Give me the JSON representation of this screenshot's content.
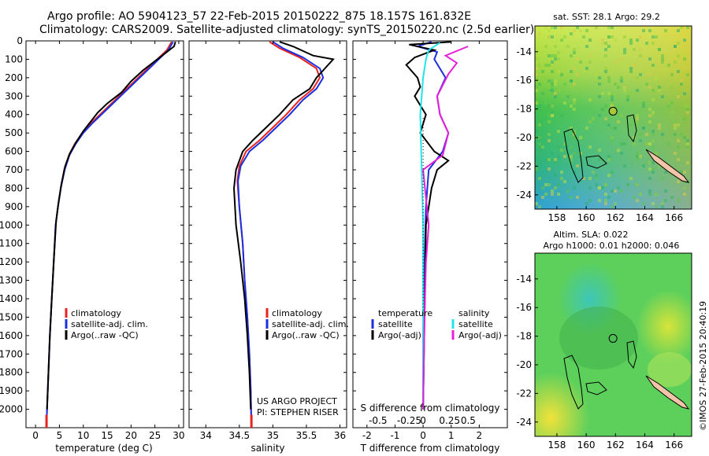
{
  "header": {
    "line1": "Argo profile: AO 5904123_57 22-Feb-2015 20150222_875 18.157S 161.832E",
    "line2": "Climatology: CARS2009. Satellite-adjusted climatology: synTS_20150220.nc (2.5d earlier)"
  },
  "colors": {
    "climatology": "#e8231f",
    "satellite": "#1a2fe0",
    "argo": "#000000",
    "sat_salinity": "#22e3e8",
    "argo_salinity": "#e81fd8",
    "land": "#f2c4a8"
  },
  "chart_data": [
    {
      "type": "line",
      "panel": "temperature",
      "xlabel": "temperature (deg C)",
      "ylabel": "",
      "xlim": [
        -2,
        31
      ],
      "ylim": [
        2100,
        0
      ],
      "xticks": [
        0,
        5,
        10,
        15,
        20,
        25,
        30
      ],
      "yticks": [
        0,
        100,
        200,
        300,
        400,
        500,
        600,
        700,
        800,
        900,
        1000,
        1100,
        1200,
        1300,
        1400,
        1500,
        1600,
        1700,
        1800,
        1900,
        2000
      ],
      "legend": [
        "climatology",
        "satellite-adj. clim.",
        "Argo(..raw -QC)"
      ],
      "series": [
        {
          "name": "climatology",
          "color": "climatology",
          "points": [
            [
              28.5,
              5
            ],
            [
              27.5,
              50
            ],
            [
              25.5,
              100
            ],
            [
              23.5,
              150
            ],
            [
              21.5,
              200
            ],
            [
              19.5,
              250
            ],
            [
              17.5,
              300
            ],
            [
              15.5,
              350
            ],
            [
              13.5,
              400
            ],
            [
              11.5,
              450
            ],
            [
              9.8,
              500
            ],
            [
              8.2,
              560
            ],
            [
              7.0,
              620
            ],
            [
              6.0,
              700
            ],
            [
              5.3,
              800
            ],
            [
              4.7,
              900
            ],
            [
              4.2,
              1000
            ],
            [
              3.8,
              1200
            ],
            [
              3.4,
              1400
            ],
            [
              3.0,
              1600
            ],
            [
              2.7,
              1800
            ],
            [
              2.4,
              2000
            ],
            [
              2.3,
              2090
            ]
          ]
        },
        {
          "name": "satellite-adj. clim.",
          "color": "satellite",
          "points": [
            [
              28.8,
              5
            ],
            [
              27.8,
              50
            ],
            [
              25.8,
              100
            ],
            [
              23.8,
              150
            ],
            [
              21.8,
              200
            ],
            [
              19.8,
              250
            ],
            [
              17.8,
              300
            ],
            [
              15.8,
              350
            ],
            [
              13.8,
              400
            ],
            [
              11.8,
              450
            ],
            [
              10.0,
              500
            ],
            [
              8.4,
              560
            ],
            [
              7.1,
              620
            ],
            [
              6.1,
              700
            ],
            [
              5.3,
              800
            ],
            [
              4.7,
              900
            ],
            [
              4.2,
              1000
            ],
            [
              3.8,
              1200
            ],
            [
              3.4,
              1400
            ],
            [
              3.0,
              1600
            ],
            [
              2.7,
              1800
            ],
            [
              2.4,
              2000
            ],
            [
              2.3,
              2090
            ]
          ]
        },
        {
          "name": "Argo(..raw -QC)",
          "color": "argo",
          "points": [
            [
              29.3,
              5
            ],
            [
              29.0,
              30
            ],
            [
              27.0,
              70
            ],
            [
              25.0,
              110
            ],
            [
              22.5,
              160
            ],
            [
              20.0,
              220
            ],
            [
              18.0,
              280
            ],
            [
              15.0,
              340
            ],
            [
              13.0,
              390
            ],
            [
              11.5,
              440
            ],
            [
              10.0,
              490
            ],
            [
              8.5,
              550
            ],
            [
              7.2,
              610
            ],
            [
              6.2,
              680
            ],
            [
              5.4,
              780
            ],
            [
              4.8,
              880
            ],
            [
              4.3,
              980
            ],
            [
              3.8,
              1200
            ],
            [
              3.4,
              1400
            ],
            [
              3.0,
              1600
            ],
            [
              2.7,
              1800
            ],
            [
              2.4,
              2000
            ]
          ]
        }
      ]
    },
    {
      "type": "line",
      "panel": "salinity",
      "xlabel": "salinity",
      "ylabel": "",
      "xlim": [
        33.75,
        36.1
      ],
      "ylim": [
        2100,
        0
      ],
      "xticks": [
        34,
        34.5,
        35,
        35.5,
        36
      ],
      "legend": [
        "climatology",
        "satellite-adj. clim.",
        "Argo(..raw -QC)"
      ],
      "annotations": [
        "US ARGO PROJECT",
        "PI: STEPHEN RISER"
      ],
      "series": [
        {
          "name": "climatology",
          "color": "climatology",
          "points": [
            [
              34.95,
              5
            ],
            [
              35.1,
              40
            ],
            [
              35.4,
              90
            ],
            [
              35.65,
              150
            ],
            [
              35.7,
              200
            ],
            [
              35.6,
              260
            ],
            [
              35.4,
              320
            ],
            [
              35.2,
              400
            ],
            [
              35.0,
              470
            ],
            [
              34.8,
              540
            ],
            [
              34.6,
              600
            ],
            [
              34.5,
              680
            ],
            [
              34.47,
              760
            ],
            [
              34.5,
              900
            ],
            [
              34.55,
              1100
            ],
            [
              34.58,
              1300
            ],
            [
              34.62,
              1500
            ],
            [
              34.65,
              1700
            ],
            [
              34.67,
              1900
            ],
            [
              34.68,
              2090
            ]
          ]
        },
        {
          "name": "satellite-adj. clim.",
          "color": "satellite",
          "points": [
            [
              35.0,
              5
            ],
            [
              35.15,
              40
            ],
            [
              35.45,
              90
            ],
            [
              35.7,
              150
            ],
            [
              35.75,
              200
            ],
            [
              35.65,
              260
            ],
            [
              35.45,
              320
            ],
            [
              35.25,
              400
            ],
            [
              35.05,
              470
            ],
            [
              34.85,
              540
            ],
            [
              34.65,
              600
            ],
            [
              34.52,
              680
            ],
            [
              34.48,
              760
            ],
            [
              34.5,
              900
            ],
            [
              34.55,
              1100
            ],
            [
              34.58,
              1300
            ],
            [
              34.62,
              1500
            ],
            [
              34.65,
              1700
            ],
            [
              34.67,
              1900
            ],
            [
              34.68,
              2090
            ]
          ]
        },
        {
          "name": "Argo(..raw -QC)",
          "color": "argo",
          "points": [
            [
              35.1,
              5
            ],
            [
              35.3,
              30
            ],
            [
              35.6,
              80
            ],
            [
              35.9,
              100
            ],
            [
              35.75,
              160
            ],
            [
              35.65,
              200
            ],
            [
              35.55,
              260
            ],
            [
              35.3,
              320
            ],
            [
              35.1,
              400
            ],
            [
              34.9,
              470
            ],
            [
              34.7,
              540
            ],
            [
              34.55,
              600
            ],
            [
              34.45,
              700
            ],
            [
              34.42,
              800
            ],
            [
              34.45,
              1000
            ],
            [
              34.52,
              1200
            ],
            [
              34.58,
              1400
            ],
            [
              34.62,
              1600
            ],
            [
              34.65,
              1800
            ],
            [
              34.67,
              2000
            ]
          ]
        }
      ]
    },
    {
      "type": "line",
      "panel": "difference",
      "xlabel": "T difference from climatology",
      "xlabel_top": "S difference from climatology",
      "xlim": [
        -2.5,
        3.0
      ],
      "ylim": [
        2100,
        0
      ],
      "xticks": [
        -2,
        -1,
        0,
        1,
        2
      ],
      "xticks_top": [
        "-0.5",
        "-0.25",
        "0",
        "0.25",
        "0.5"
      ],
      "legend_temperature": [
        "temperature",
        "satellite",
        "Argo(-adj)"
      ],
      "legend_salinity": [
        "salinity",
        "satellite",
        "Argo(-adj)"
      ],
      "series": [
        {
          "name": "satellite",
          "color": "satellite",
          "points": [
            [
              0.3,
              5
            ],
            [
              -0.2,
              30
            ],
            [
              0.5,
              60
            ],
            [
              0.4,
              100
            ],
            [
              0.8,
              200
            ],
            [
              0.5,
              300
            ],
            [
              0.6,
              400
            ],
            [
              0.9,
              500
            ],
            [
              0.7,
              600
            ],
            [
              0.2,
              700
            ],
            [
              0.1,
              900
            ],
            [
              0.05,
              1200
            ],
            [
              0.0,
              1600
            ],
            [
              0.0,
              2000
            ]
          ]
        },
        {
          "name": "Argo(-adj)",
          "color": "argo",
          "points": [
            [
              1.0,
              5
            ],
            [
              -0.5,
              20
            ],
            [
              0.4,
              50
            ],
            [
              -0.3,
              90
            ],
            [
              -0.6,
              130
            ],
            [
              -0.2,
              200
            ],
            [
              -0.1,
              250
            ],
            [
              -0.3,
              300
            ],
            [
              0.1,
              400
            ],
            [
              -0.1,
              500
            ],
            [
              0.4,
              600
            ],
            [
              0.9,
              650
            ],
            [
              0.5,
              700
            ],
            [
              0.3,
              800
            ],
            [
              0.1,
              1000
            ],
            [
              0.05,
              1500
            ],
            [
              0.0,
              2000
            ]
          ]
        },
        {
          "name": "satellite",
          "color": "sat_salinity",
          "points": [
            [
              0.6,
              10
            ],
            [
              0.2,
              50
            ],
            [
              0.1,
              100
            ],
            [
              0.0,
              200
            ],
            [
              -0.1,
              400
            ],
            [
              -0.05,
              700
            ],
            [
              0.0,
              1000
            ],
            [
              0.0,
              1500
            ],
            [
              0.0,
              2000
            ]
          ]
        },
        {
          "name": "Argo(-adj)",
          "color": "argo_salinity",
          "points": [
            [
              1.6,
              30
            ],
            [
              0.8,
              80
            ],
            [
              1.2,
              120
            ],
            [
              0.9,
              180
            ],
            [
              0.5,
              300
            ],
            [
              0.6,
              400
            ],
            [
              0.9,
              500
            ],
            [
              0.7,
              620
            ],
            [
              0.0,
              700
            ],
            [
              0.2,
              1000
            ],
            [
              0.1,
              1200
            ],
            [
              0.05,
              1500
            ],
            [
              0.0,
              2000
            ]
          ]
        }
      ]
    },
    {
      "type": "heatmap",
      "panel": "sst-map",
      "title": "sat. SST: 28.1  Argo: 29.2",
      "xticks": [
        158,
        160,
        162,
        164,
        166
      ],
      "yticks": [
        -14,
        -16,
        -18,
        -20,
        -22,
        -24
      ],
      "xlim": [
        156.5,
        167.2
      ],
      "ylim": [
        -25.0,
        -12.2
      ],
      "argo_point": [
        161.832,
        -18.157
      ]
    },
    {
      "type": "heatmap",
      "panel": "sla-map",
      "title_line1": "Altim. SLA: 0.022",
      "title_line2": "Argo h1000: 0.01 h2000: 0.046",
      "xticks": [
        158,
        160,
        162,
        164,
        166
      ],
      "yticks": [
        -14,
        -16,
        -18,
        -20,
        -22,
        -24
      ],
      "xlim": [
        156.5,
        167.2
      ],
      "ylim": [
        -25.0,
        -12.2
      ],
      "argo_point": [
        161.832,
        -18.157
      ]
    }
  ],
  "credit": "©IMOS 27-Feb-2015 20:40:19"
}
